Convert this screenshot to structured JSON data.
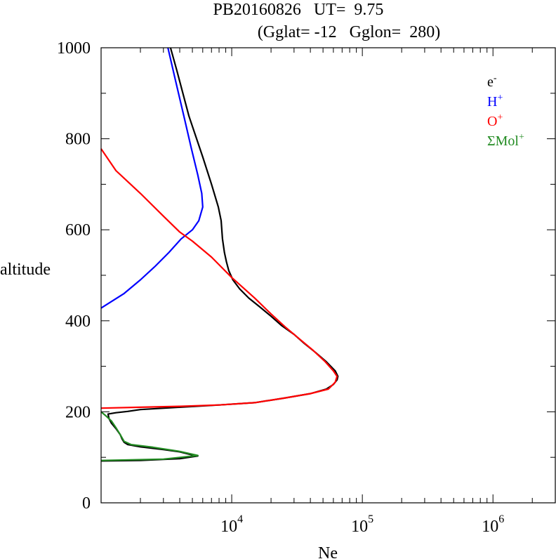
{
  "chart_data": {
    "type": "line",
    "title_line1": "PB20160826   UT=  9.75",
    "title_line2": "(Gglat= -12   Gglon=  280)",
    "xlabel": "Ne",
    "ylabel": "altitude",
    "x_scale": "log",
    "xlim": [
      1000,
      3000000
    ],
    "ylim": [
      0,
      1000
    ],
    "x_ticks": [
      {
        "value": 10000,
        "base": "10",
        "exp": "4"
      },
      {
        "value": 100000,
        "base": "10",
        "exp": "5"
      },
      {
        "value": 1000000,
        "base": "10",
        "exp": "6"
      }
    ],
    "y_ticks": [
      "0",
      "200",
      "400",
      "600",
      "800",
      "1000"
    ],
    "grid": false,
    "legend_position": "top-right",
    "series": [
      {
        "name": "e",
        "name_sup": "-",
        "color": "#000000",
        "points": [
          [
            1000,
            92
          ],
          [
            2000,
            93
          ],
          [
            4000,
            97
          ],
          [
            5500,
            103
          ],
          [
            4700,
            107
          ],
          [
            4000,
            112
          ],
          [
            3000,
            117
          ],
          [
            2000,
            123
          ],
          [
            1600,
            128
          ],
          [
            1500,
            133
          ],
          [
            1450,
            140
          ],
          [
            1400,
            150
          ],
          [
            1300,
            163
          ],
          [
            1200,
            175
          ],
          [
            1150,
            185
          ],
          [
            1130,
            195
          ],
          [
            1300,
            198
          ],
          [
            1600,
            201
          ],
          [
            2000,
            205
          ],
          [
            4000,
            210
          ],
          [
            8000,
            215
          ],
          [
            15000,
            220
          ],
          [
            25000,
            230
          ],
          [
            40000,
            240
          ],
          [
            53000,
            250
          ],
          [
            60000,
            260
          ],
          [
            64000,
            270
          ],
          [
            65000,
            278
          ],
          [
            62000,
            290
          ],
          [
            53000,
            310
          ],
          [
            44000,
            330
          ],
          [
            36000,
            350
          ],
          [
            30000,
            370
          ],
          [
            24000,
            390
          ],
          [
            20000,
            410
          ],
          [
            16500,
            430
          ],
          [
            13500,
            450
          ],
          [
            11500,
            470
          ],
          [
            10200,
            490
          ],
          [
            9500,
            510
          ],
          [
            9100,
            530
          ],
          [
            8800,
            550
          ],
          [
            8500,
            580
          ],
          [
            8300,
            620
          ],
          [
            7900,
            650
          ],
          [
            7000,
            700
          ],
          [
            6000,
            760
          ],
          [
            4700,
            850
          ],
          [
            3800,
            950
          ],
          [
            3400,
            1000
          ]
        ]
      },
      {
        "name": "H",
        "name_sup": "+",
        "color": "#0000ff",
        "points": [
          [
            1000,
            428
          ],
          [
            1500,
            460
          ],
          [
            2000,
            490
          ],
          [
            2600,
            520
          ],
          [
            3300,
            550
          ],
          [
            4100,
            580
          ],
          [
            5000,
            600
          ],
          [
            5600,
            620
          ],
          [
            6000,
            650
          ],
          [
            5900,
            680
          ],
          [
            5500,
            720
          ],
          [
            4900,
            780
          ],
          [
            4300,
            850
          ],
          [
            3700,
            930
          ],
          [
            3250,
            1000
          ]
        ]
      },
      {
        "name": "O",
        "name_sup": "+",
        "color": "#ff0000",
        "points": [
          [
            1000,
            778
          ],
          [
            1300,
            730
          ],
          [
            2000,
            680
          ],
          [
            3000,
            630
          ],
          [
            4000,
            595
          ],
          [
            5000,
            575
          ],
          [
            7000,
            540
          ],
          [
            10000,
            495
          ],
          [
            15000,
            450
          ],
          [
            20000,
            415
          ],
          [
            26000,
            385
          ],
          [
            33000,
            360
          ],
          [
            42000,
            335
          ],
          [
            52000,
            310
          ],
          [
            60000,
            290
          ],
          [
            64000,
            278
          ],
          [
            62000,
            265
          ],
          [
            55000,
            250
          ],
          [
            40000,
            240
          ],
          [
            25000,
            230
          ],
          [
            15000,
            220
          ],
          [
            8000,
            215
          ],
          [
            4000,
            212
          ],
          [
            2000,
            210
          ],
          [
            1000,
            208
          ]
        ]
      },
      {
        "name": "ΣMol",
        "name_sup": "+",
        "color": "#228b22",
        "points": [
          [
            1000,
            200
          ],
          [
            1100,
            190
          ],
          [
            1200,
            180
          ],
          [
            1300,
            165
          ],
          [
            1400,
            150
          ],
          [
            1500,
            135
          ],
          [
            1700,
            128
          ],
          [
            2500,
            122
          ],
          [
            4000,
            113
          ],
          [
            5500,
            104
          ],
          [
            3000,
            96
          ],
          [
            1000,
            93
          ]
        ]
      }
    ]
  }
}
